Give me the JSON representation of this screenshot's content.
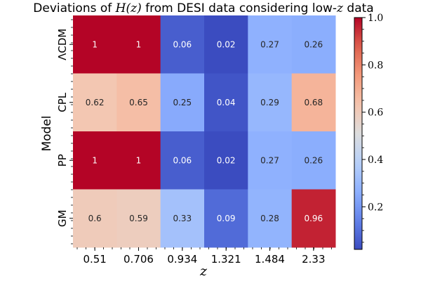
{
  "chart_data": {
    "type": "heatmap",
    "title": {
      "prefix": "Deviations of ",
      "math": "H(z)",
      "middle": " from DESI data considering low-",
      "math2": "z",
      "suffix": " data"
    },
    "xlabel": "z",
    "ylabel": "Model",
    "x_categories": [
      "0.51",
      "0.706",
      "0.934",
      "1.321",
      "1.484",
      "2.33"
    ],
    "y_categories": [
      "ΛCDM",
      "CPL",
      "PP",
      "GM"
    ],
    "values": [
      [
        1,
        1,
        0.06,
        0.02,
        0.27,
        0.26
      ],
      [
        0.62,
        0.65,
        0.25,
        0.04,
        0.29,
        0.68
      ],
      [
        1,
        1,
        0.06,
        0.02,
        0.27,
        0.26
      ],
      [
        0.6,
        0.59,
        0.33,
        0.09,
        0.28,
        0.96
      ]
    ],
    "labels": [
      [
        "1",
        "1",
        "0.06",
        "0.02",
        "0.27",
        "0.26"
      ],
      [
        "0.62",
        "0.65",
        "0.25",
        "0.04",
        "0.29",
        "0.68"
      ],
      [
        "1",
        "1",
        "0.06",
        "0.02",
        "0.27",
        "0.26"
      ],
      [
        "0.6",
        "0.59",
        "0.33",
        "0.09",
        "0.28",
        "0.96"
      ]
    ],
    "colormap": "coolwarm",
    "vmin": 0.02,
    "vmax": 1,
    "colorbar_ticks": [
      {
        "value": 0.2,
        "label": "0.2"
      },
      {
        "value": 0.4,
        "label": "0.4"
      },
      {
        "value": 0.6,
        "label": "0.6"
      },
      {
        "value": 0.8,
        "label": "0.8"
      },
      {
        "value": 1.0,
        "label": "1.0"
      }
    ]
  }
}
